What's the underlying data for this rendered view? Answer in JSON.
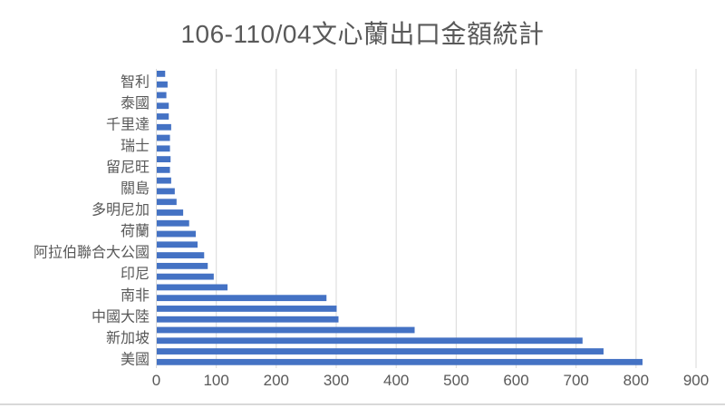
{
  "title": "106-110/04文心蘭出口金額統計",
  "colors": {
    "bar": "#4472C4",
    "grid": "#D9D9D9",
    "axis_line": "#D9D9D9",
    "text": "#595959",
    "background": "#FFFFFF"
  },
  "chart_data": {
    "type": "bar",
    "orientation": "horizontal",
    "title": "106-110/04文心蘭出口金額統計",
    "xlabel": "",
    "ylabel": "",
    "xlim": [
      0,
      900
    ],
    "x_ticks": [
      0,
      100,
      200,
      300,
      400,
      500,
      600,
      700,
      800,
      900
    ],
    "grid": true,
    "legend": false,
    "bars_per_category": 2,
    "category_order": "top-to-bottom",
    "note": "Each axis label corresponds to a pair of adjacent bars; 28 bars total, values in export amount units",
    "categories": [
      "智利",
      "泰國",
      "千里達",
      "瑞士",
      "留尼旺",
      "關島",
      "多明尼加",
      "荷蘭",
      "阿拉伯聯合大公國",
      "印尼",
      "南非",
      "中國大陸",
      "新加坡",
      "美國"
    ],
    "values_pairs": [
      [
        14,
        18
      ],
      [
        16,
        20
      ],
      [
        20,
        24
      ],
      [
        22,
        22
      ],
      [
        23,
        22
      ],
      [
        24,
        30
      ],
      [
        33,
        44
      ],
      [
        54,
        65
      ],
      [
        68,
        79
      ],
      [
        85,
        95
      ],
      [
        118,
        283
      ],
      [
        300,
        303
      ],
      [
        430,
        710
      ],
      [
        745,
        810
      ]
    ]
  }
}
